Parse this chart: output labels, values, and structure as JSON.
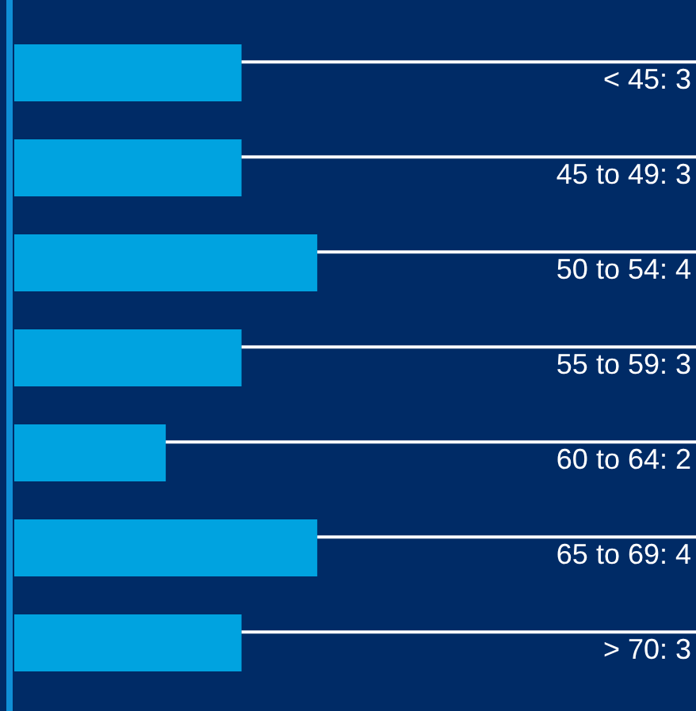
{
  "chart_data": {
    "type": "bar",
    "orientation": "horizontal",
    "categories": [
      null,
      null,
      null,
      null,
      null,
      null,
      null
    ],
    "values": [
      3,
      3,
      4,
      3,
      2,
      4,
      3
    ],
    "value_labels": [
      "< 45: 3",
      "45 to 49: 3",
      "50 to 54: 4",
      "55 to 59: 3",
      "60 to 64: 2",
      "65 to 69: 4",
      "> 70: 3"
    ],
    "color": "#00a3e0",
    "xlim": [
      0,
      9
    ],
    "grid": false,
    "legend": false
  }
}
